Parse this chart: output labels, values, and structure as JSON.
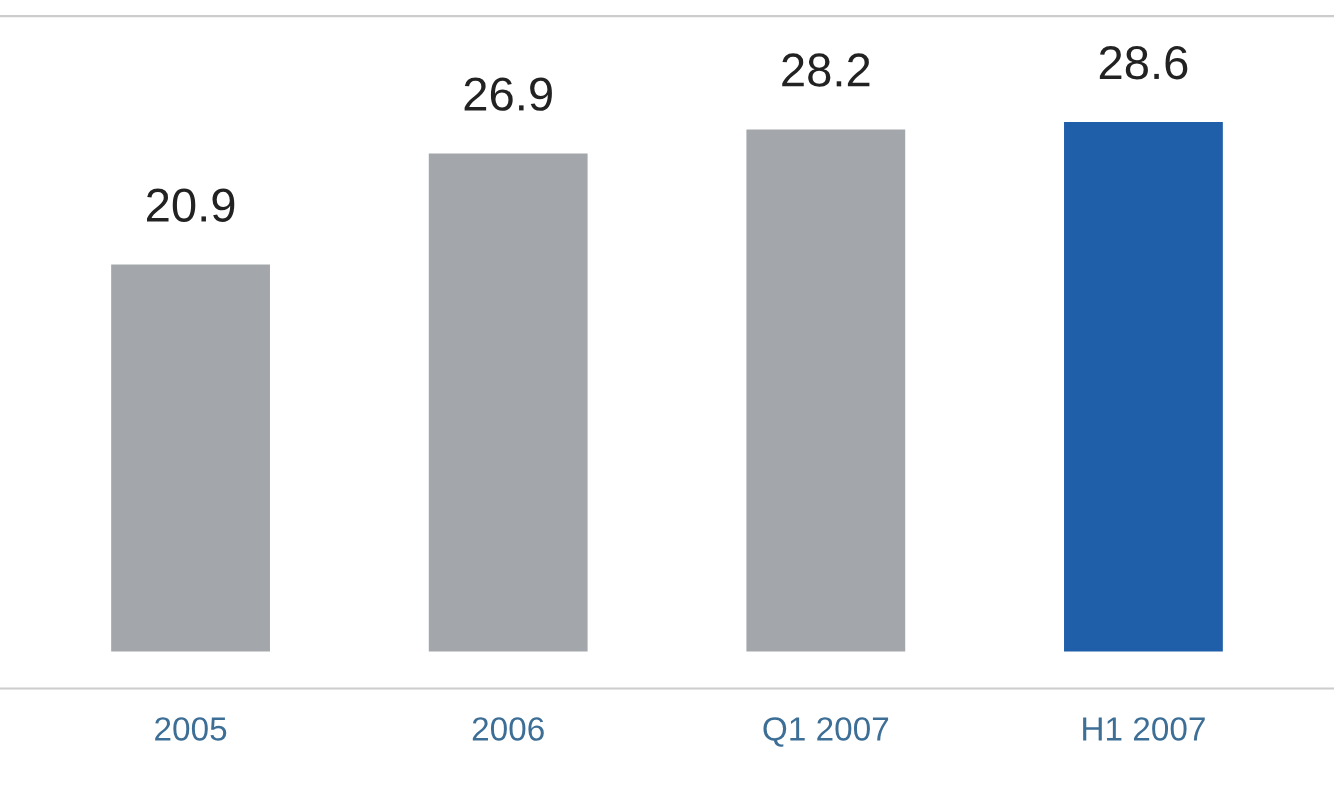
{
  "chart_data": {
    "type": "bar",
    "categories": [
      "2005",
      "2006",
      "Q1 2007",
      "H1 2007"
    ],
    "values": [
      20.9,
      26.9,
      28.2,
      28.6
    ],
    "colors": [
      "#a3a7ab",
      "#a3a7ab",
      "#a3a7ab",
      "#1f5ea8"
    ],
    "data_labels": true,
    "grid": false,
    "legend": false
  }
}
